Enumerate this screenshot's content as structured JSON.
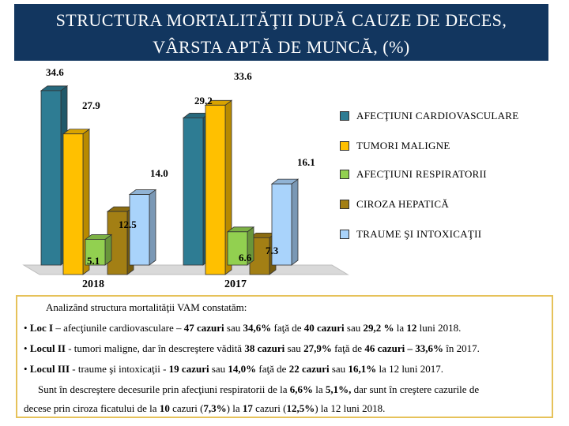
{
  "title": {
    "line1": "STRUCTURA MORTALITĂŢII DUPĂ CAUZE  DE DECES,",
    "line2": "VÂRSTA APTĂ DE MUNCĂ, (%)"
  },
  "chart_data": {
    "type": "bar",
    "categories": [
      "2018",
      "2017"
    ],
    "series": [
      {
        "name": "AFECŢIUNI CARDIOVASCULARE",
        "values": [
          34.6,
          29.2
        ],
        "color": "#2e7c93"
      },
      {
        "name": "TUMORI MALIGNE",
        "values": [
          27.9,
          33.6
        ],
        "color": "#ffc000"
      },
      {
        "name": "AFECŢIUNI RESPIRATORII",
        "values": [
          5.1,
          6.6
        ],
        "color": "#92d050"
      },
      {
        "name": "CIROZA HEPATICĂ",
        "values": [
          12.5,
          7.3
        ],
        "color": "#a37f14"
      },
      {
        "name": "TRAUME ŞI INTOXICAŢII",
        "values": [
          14.0,
          16.1
        ],
        "color": "#a9d3fb"
      }
    ],
    "data_labels": [
      [
        "34.6",
        "27.9",
        "5.1",
        "12.5",
        "14.0"
      ],
      [
        "29.2",
        "33.6",
        "6.6",
        "7.3",
        "16.1"
      ]
    ],
    "ylim": [
      0,
      36
    ],
    "grid": false,
    "legend_position": "right",
    "style": "3d-clustered-bar"
  },
  "text": {
    "intro": "Analizând structura mortalităţii VAM constatăm:",
    "p1": {
      "a": "• ",
      "b": "Loc I",
      "c": " – afecţiunile cardiovasculare – ",
      "d": "47 cazuri",
      "e": " sau ",
      "f": "34,6%",
      "g": " faţă de ",
      "h": "40 cazuri",
      "i": " sau ",
      "j": "29,2  %",
      "k": " la ",
      "l": "12",
      "m": " luni 2018."
    },
    "p2": {
      "a": "• ",
      "b": "Locul II",
      "c": " - tumori maligne, dar în descreştere vădită ",
      "d": "38 cazuri",
      "e": " sau ",
      "f": "27,9%",
      "g": " faţă de ",
      "h": "46 cazuri – 33,6%",
      "i": " în 2017."
    },
    "p3": {
      "a": "• ",
      "b": "Locul III",
      "c": " - traume şi intoxicaţii - ",
      "d": "19 cazuri",
      "e": " sau ",
      "f": "14,0%",
      "g": "  faţă de  ",
      "h": "22 cazuri",
      "i": " sau ",
      "j": "16,1%",
      "k": " la 12 luni 2017."
    },
    "p4": {
      "a": "Sunt în descreştere decesurile prin afecţiuni respiratorii de la ",
      "b": "6,6%",
      "c": " la ",
      "d": "5,1%,",
      "e": " dar sunt în creştere cazurile de"
    },
    "p5": {
      "a": "decese prin ciroza ficatului de la ",
      "b": "10",
      "c": " cazuri (",
      "d": "7,3%",
      "e": ") la ",
      "f": "17",
      "g": " cazuri (",
      "h": "12,5%",
      "i": ") la 12 luni 2018."
    }
  }
}
